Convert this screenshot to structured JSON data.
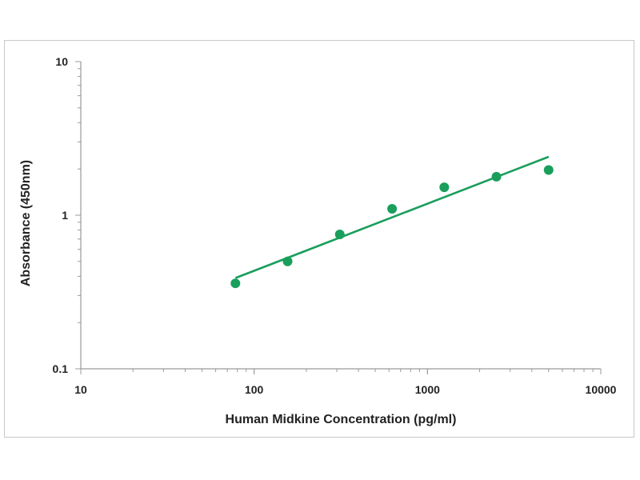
{
  "chart_data": {
    "type": "scatter",
    "title": "",
    "xlabel": "Human Midkine Concentration (pg/ml)",
    "ylabel": "Absorbance (450nm)",
    "x_scale": "log",
    "y_scale": "log",
    "xlim": [
      10,
      10000
    ],
    "ylim": [
      0.1,
      10
    ],
    "x_ticks": [
      {
        "value": 10,
        "label": "10"
      },
      {
        "value": 100,
        "label": "100"
      },
      {
        "value": 1000,
        "label": "1000"
      },
      {
        "value": 10000,
        "label": "10000"
      }
    ],
    "y_ticks": [
      {
        "value": 0.1,
        "label": "0.1"
      },
      {
        "value": 1,
        "label": "1"
      },
      {
        "value": 10,
        "label": "10"
      }
    ],
    "grid": false,
    "legend": "none",
    "series": [
      {
        "type": "scatter",
        "color": "#1a9e5c",
        "x": [
          78,
          156,
          312,
          625,
          1250,
          2500,
          5000
        ],
        "y": [
          0.36,
          0.5,
          0.75,
          1.1,
          1.52,
          1.78,
          1.97
        ]
      },
      {
        "type": "line",
        "color": "#1a9e5c",
        "x": [
          78,
          5000
        ],
        "y": [
          0.39,
          2.4
        ]
      }
    ]
  }
}
